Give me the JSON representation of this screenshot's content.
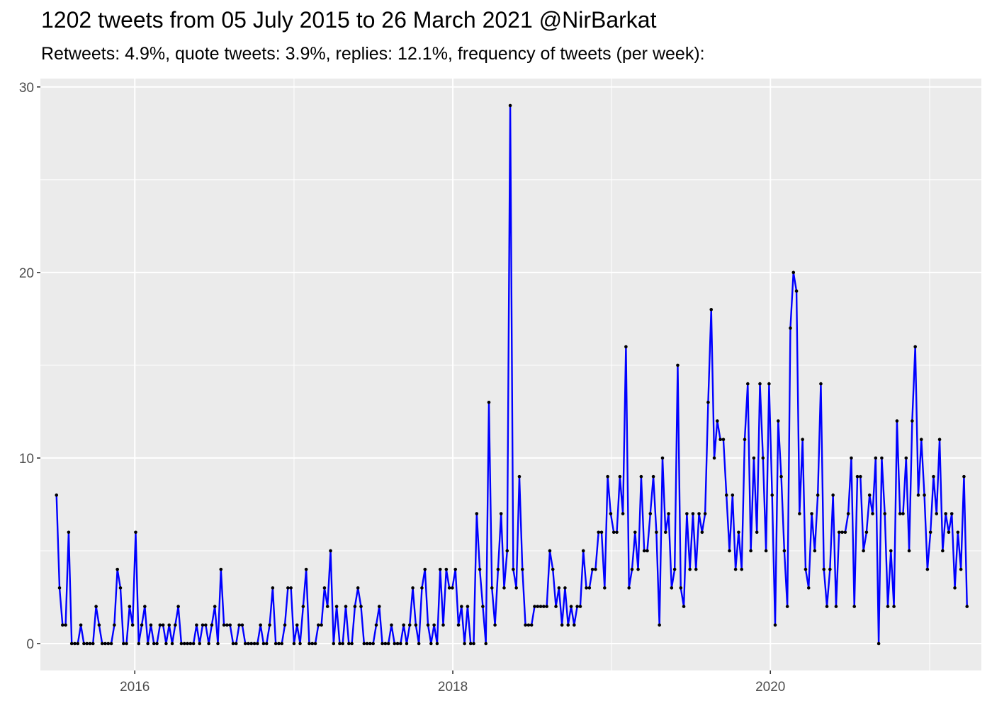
{
  "title": "1202 tweets from 05 July 2015 to 26 March 2021 @NirBarkat",
  "subtitle": "Retweets: 4.9%, quote tweets: 3.9%, replies: 12.1%, frequency of tweets (per week):",
  "colors": {
    "line": "#0000ff",
    "point": "#000000",
    "panel": "#ebebeb",
    "grid": "#ffffff"
  },
  "chart_data": {
    "type": "line",
    "title": "1202 tweets from 05 July 2015 to 26 March 2021 @NirBarkat",
    "subtitle": "Retweets: 4.9%, quote tweets: 3.9%, replies: 12.1%, frequency of tweets (per week):",
    "xlabel": "",
    "ylabel": "",
    "x_tick_labels": [
      "2016",
      "2018",
      "2020"
    ],
    "y_ticks": [
      0,
      10,
      20,
      30
    ],
    "ylim": [
      -1.45,
      30.45
    ],
    "xlim": [
      "2015-05-29",
      "2021-04-30"
    ],
    "grid": true,
    "x_start": "2015-07-05",
    "x_step_days": 7,
    "values": [
      8,
      3,
      1,
      1,
      6,
      0,
      0,
      0,
      1,
      0,
      0,
      0,
      0,
      2,
      1,
      0,
      0,
      0,
      0,
      1,
      4,
      3,
      0,
      0,
      2,
      1,
      6,
      0,
      1,
      2,
      0,
      1,
      0,
      0,
      1,
      1,
      0,
      1,
      0,
      1,
      2,
      0,
      0,
      0,
      0,
      0,
      1,
      0,
      1,
      1,
      0,
      1,
      2,
      0,
      4,
      1,
      1,
      1,
      0,
      0,
      1,
      1,
      0,
      0,
      0,
      0,
      0,
      1,
      0,
      0,
      1,
      3,
      0,
      0,
      0,
      1,
      3,
      3,
      0,
      1,
      0,
      2,
      4,
      0,
      0,
      0,
      1,
      1,
      3,
      2,
      5,
      0,
      2,
      0,
      0,
      2,
      0,
      0,
      2,
      3,
      2,
      0,
      0,
      0,
      0,
      1,
      2,
      0,
      0,
      0,
      1,
      0,
      0,
      0,
      1,
      0,
      1,
      3,
      1,
      0,
      3,
      4,
      1,
      0,
      1,
      0,
      4,
      1,
      4,
      3,
      3,
      4,
      1,
      2,
      0,
      2,
      0,
      0,
      7,
      4,
      2,
      0,
      13,
      3,
      1,
      4,
      7,
      3,
      5,
      29,
      4,
      3,
      9,
      4,
      1,
      1,
      1,
      2,
      2,
      2,
      2,
      2,
      5,
      4,
      2,
      3,
      1,
      3,
      1,
      2,
      1,
      2,
      2,
      5,
      3,
      3,
      4,
      4,
      6,
      6,
      3,
      9,
      7,
      6,
      6,
      9,
      7,
      16,
      3,
      4,
      6,
      4,
      9,
      5,
      5,
      7,
      9,
      6,
      1,
      10,
      6,
      7,
      3,
      4,
      15,
      3,
      2,
      7,
      4,
      7,
      4,
      7,
      6,
      7,
      13,
      18,
      10,
      12,
      11,
      11,
      8,
      5,
      8,
      4,
      6,
      4,
      11,
      14,
      5,
      10,
      6,
      14,
      10,
      5,
      14,
      8,
      1,
      12,
      9,
      5,
      2,
      17,
      20,
      19,
      7,
      11,
      4,
      3,
      7,
      5,
      8,
      14,
      4,
      2,
      4,
      8,
      2,
      6,
      6,
      6,
      7,
      10,
      2,
      9,
      9,
      5,
      6,
      8,
      7,
      10,
      0,
      10,
      7,
      2,
      5,
      2,
      12,
      7,
      7,
      10,
      5,
      12,
      16,
      8,
      11,
      8,
      4,
      6,
      9,
      7,
      11,
      5,
      7,
      6,
      7,
      3,
      6,
      4,
      9,
      2
    ]
  }
}
